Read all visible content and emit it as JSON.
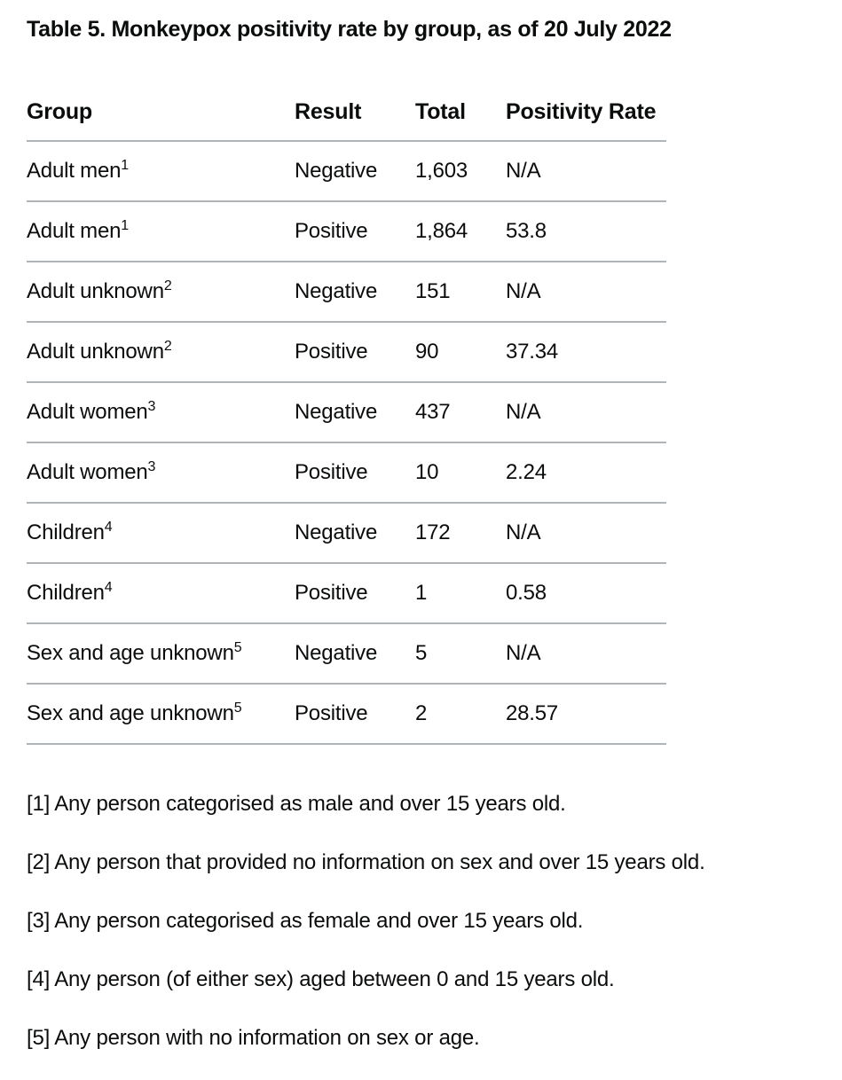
{
  "title": "Table 5. Monkeypox positivity rate by group, as of 20 July 2022",
  "table": {
    "columns": [
      "Group",
      "Result",
      "Total",
      "Positivity Rate"
    ],
    "rows": [
      {
        "group": "Adult men",
        "footnote_ref": "1",
        "result": "Negative",
        "total": "1,603",
        "positivity_rate": "N/A"
      },
      {
        "group": "Adult men",
        "footnote_ref": "1",
        "result": "Positive",
        "total": "1,864",
        "positivity_rate": "53.8"
      },
      {
        "group": "Adult unknown",
        "footnote_ref": "2",
        "result": "Negative",
        "total": "151",
        "positivity_rate": "N/A"
      },
      {
        "group": "Adult unknown",
        "footnote_ref": "2",
        "result": "Positive",
        "total": "90",
        "positivity_rate": "37.34"
      },
      {
        "group": "Adult women",
        "footnote_ref": "3",
        "result": "Negative",
        "total": "437",
        "positivity_rate": "N/A"
      },
      {
        "group": "Adult women",
        "footnote_ref": "3",
        "result": "Positive",
        "total": "10",
        "positivity_rate": "2.24"
      },
      {
        "group": "Children",
        "footnote_ref": "4",
        "result": "Negative",
        "total": "172",
        "positivity_rate": "N/A"
      },
      {
        "group": "Children",
        "footnote_ref": "4",
        "result": "Positive",
        "total": "1",
        "positivity_rate": "0.58"
      },
      {
        "group": "Sex and age unknown",
        "footnote_ref": "5",
        "result": "Negative",
        "total": "5",
        "positivity_rate": "N/A"
      },
      {
        "group": "Sex and age unknown",
        "footnote_ref": "5",
        "result": "Positive",
        "total": "2",
        "positivity_rate": "28.57"
      }
    ]
  },
  "footnotes": [
    {
      "marker": "[1]",
      "text": "Any person categorised as male and over 15 years old."
    },
    {
      "marker": "[2]",
      "text": "Any person that provided no information on sex and over 15 years old."
    },
    {
      "marker": "[3]",
      "text": "Any person categorised as female and over 15 years old."
    },
    {
      "marker": "[4]",
      "text": "Any person (of either sex) aged between 0 and 15 years old."
    },
    {
      "marker": "[5]",
      "text": "Any person with no information on sex or age."
    }
  ],
  "colors": {
    "text": "#0b0c0c",
    "border": "#b1b4b6",
    "background": "#ffffff"
  }
}
